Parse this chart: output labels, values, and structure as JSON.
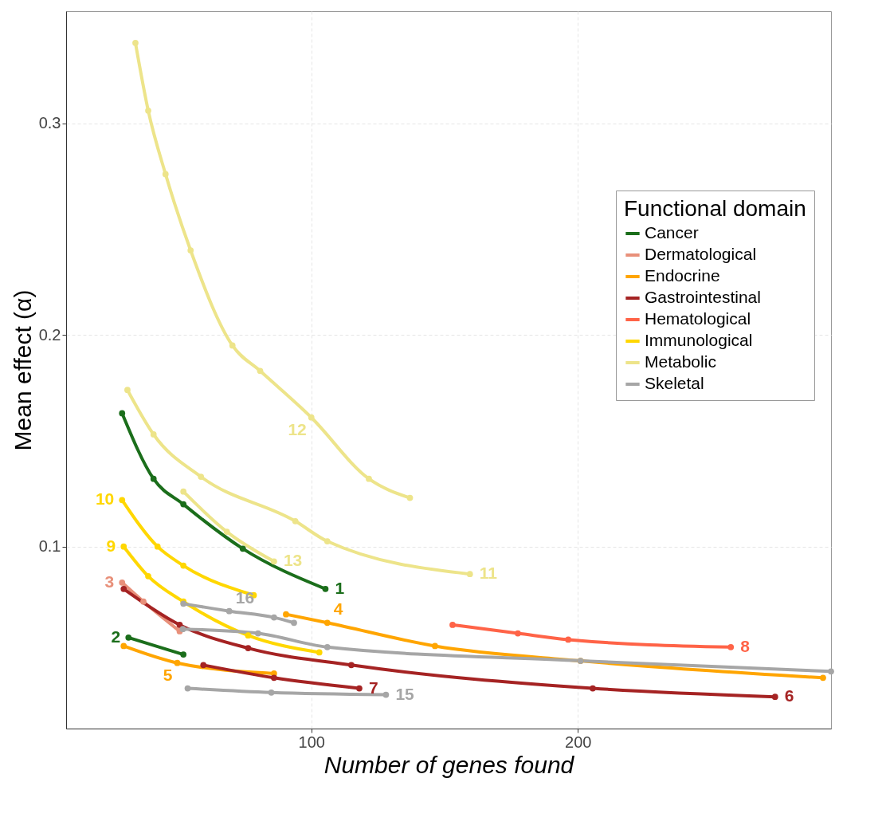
{
  "chart_data": {
    "type": "line",
    "xlabel": "Number of genes found",
    "ylabel": "Mean effect (α)",
    "legend_title": "Functional domain",
    "xlim": [
      8,
      295
    ],
    "ylim": [
      0.014,
      0.353
    ],
    "xticks": [
      100,
      200
    ],
    "yticks": [
      0.1,
      0.2,
      0.3
    ],
    "grid": true,
    "legend": "right",
    "marker": "circle",
    "line_style": "solid",
    "series": [
      {
        "name": "Cancer",
        "color": "#1b6e1b",
        "x": [
          29,
          40.8,
          52,
          74.3,
          105.3
        ],
        "values": [
          0.163,
          0.132,
          0.12,
          0.099,
          0.08
        ]
      },
      {
        "color": "#1b6e1b",
        "x": [
          31.4,
          52
        ],
        "values": [
          0.057,
          0.049
        ]
      },
      {
        "name": "Dermatological",
        "color": "#e8907a",
        "x": [
          29,
          37,
          50.6
        ],
        "values": [
          0.083,
          0.074,
          0.06
        ]
      },
      {
        "name": "Endocrine",
        "color": "#ffa500",
        "x": [
          90.5,
          106,
          146.4,
          201,
          292
        ],
        "values": [
          0.068,
          0.064,
          0.053,
          0.046,
          0.038
        ]
      },
      {
        "color": "#ffa500",
        "x": [
          29.6,
          49.7,
          86
        ],
        "values": [
          0.053,
          0.045,
          0.04
        ]
      },
      {
        "name": "Gastrointestinal",
        "color": "#a52323",
        "x": [
          29.6,
          50.6,
          76.3,
          115,
          205.6,
          274
        ],
        "values": [
          0.08,
          0.063,
          0.052,
          0.044,
          0.033,
          0.029
        ]
      },
      {
        "color": "#a52323",
        "x": [
          59.5,
          86,
          118
        ],
        "values": [
          0.044,
          0.038,
          0.033
        ]
      },
      {
        "name": "Hematological",
        "color": "#ff6347",
        "x": [
          153,
          177.5,
          196.4,
          257.4
        ],
        "values": [
          0.063,
          0.059,
          0.056,
          0.0525
        ]
      },
      {
        "name": "Immunological",
        "color": "#ffd700",
        "x": [
          29.6,
          38.8,
          52,
          76.3,
          103
        ],
        "values": [
          0.1,
          0.086,
          0.074,
          0.058,
          0.05
        ]
      },
      {
        "color": "#ffd700",
        "x": [
          29,
          42.3,
          52,
          78.4
        ],
        "values": [
          0.122,
          0.1,
          0.091,
          0.077
        ]
      },
      {
        "name": "Metabolic",
        "color": "#ede48a",
        "x": [
          31,
          40.8,
          58.6,
          94,
          106,
          159.5
        ],
        "values": [
          0.174,
          0.153,
          0.133,
          0.112,
          0.1025,
          0.087
        ]
      },
      {
        "color": "#ede48a",
        "x": [
          34,
          38.8,
          45.3,
          54.7,
          70.4,
          80.8,
          100,
          121.6,
          137
        ],
        "values": [
          0.338,
          0.306,
          0.276,
          0.24,
          0.195,
          0.183,
          0.161,
          0.132,
          0.123
        ]
      },
      {
        "color": "#ede48a",
        "x": [
          52,
          68.3,
          86
        ],
        "values": [
          0.126,
          0.107,
          0.093
        ]
      },
      {
        "name": "Skeletal",
        "color": "#a6a6a6",
        "x": [
          51.8,
          80,
          106,
          201,
          295
        ],
        "values": [
          0.061,
          0.059,
          0.0525,
          0.046,
          0.041
        ]
      },
      {
        "color": "#a6a6a6",
        "x": [
          53.6,
          85,
          128
        ],
        "values": [
          0.033,
          0.031,
          0.03
        ]
      },
      {
        "color": "#a6a6a6",
        "x": [
          52,
          69.2,
          86,
          93.5
        ],
        "values": [
          0.073,
          0.0695,
          0.0665,
          0.064
        ]
      }
    ],
    "annotations": [
      {
        "text": "1",
        "x": 105.3,
        "y": 0.08
      },
      {
        "text": "2",
        "x": 31.4,
        "y": 0.057
      },
      {
        "text": "3",
        "x": 29,
        "y": 0.083
      },
      {
        "text": "4",
        "x": 106,
        "y": 0.064
      },
      {
        "text": "5",
        "x": 49.7,
        "y": 0.045
      },
      {
        "text": "6",
        "x": 274,
        "y": 0.029
      },
      {
        "text": "7",
        "x": 118,
        "y": 0.033
      },
      {
        "text": "8",
        "x": 257.4,
        "y": 0.0525
      },
      {
        "text": "9",
        "x": 29.6,
        "y": 0.1
      },
      {
        "text": "10",
        "x": 29,
        "y": 0.122
      },
      {
        "text": "11",
        "x": 159.5,
        "y": 0.087
      },
      {
        "text": "12",
        "x": 100,
        "y": 0.161
      },
      {
        "text": "13",
        "x": 86,
        "y": 0.093
      },
      {
        "text": "15",
        "x": 128,
        "y": 0.03
      },
      {
        "text": "16",
        "x": 69.2,
        "y": 0.0695
      }
    ]
  }
}
